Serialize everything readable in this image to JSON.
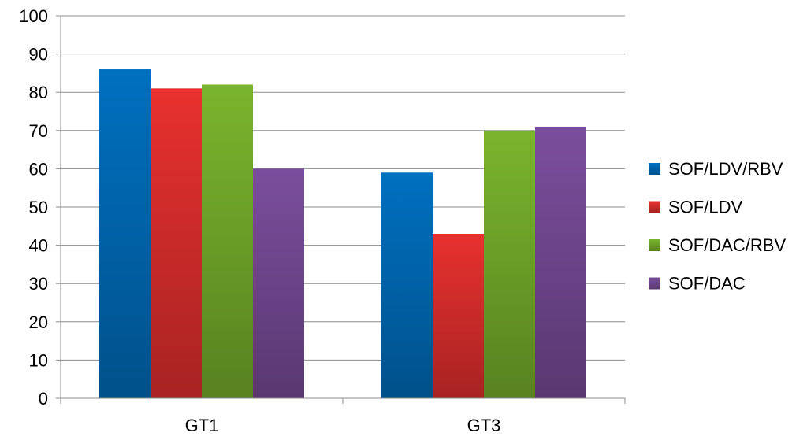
{
  "chart_data": {
    "type": "bar",
    "title": "",
    "xlabel": "",
    "ylabel": "",
    "categories": [
      "GT1",
      "GT3"
    ],
    "series": [
      {
        "name": "SOF/LDV/RBV",
        "values": [
          86,
          59
        ],
        "color": "#0070C0"
      },
      {
        "name": "SOF/LDV",
        "values": [
          81,
          43
        ],
        "color": "#E8312F"
      },
      {
        "name": "SOF/DAC/RBV",
        "values": [
          82,
          70
        ],
        "color": "#7AB52D"
      },
      {
        "name": "SOF/DAC",
        "values": [
          60,
          71
        ],
        "color": "#7B4E9D"
      }
    ],
    "ylim": [
      0,
      100
    ],
    "yticks": [
      "0",
      "10",
      "20",
      "30",
      "40",
      "50",
      "60",
      "70",
      "80",
      "90",
      "100"
    ],
    "grid": true,
    "legend_position": "right"
  }
}
